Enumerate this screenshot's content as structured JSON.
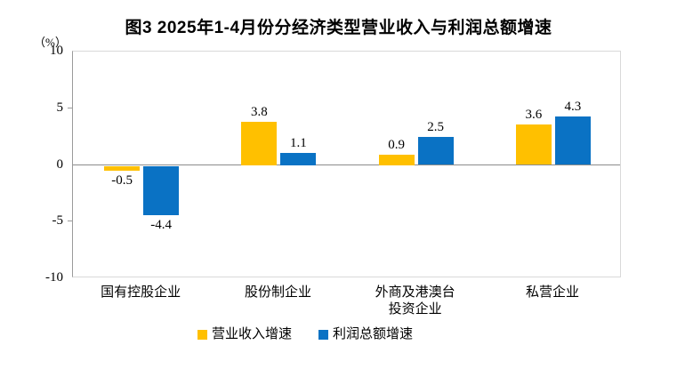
{
  "title": "图3 2025年1-4月份分经济类型营业收入与利润总额增速",
  "unit_label": "（%）",
  "chart_data": {
    "type": "bar",
    "title": "图3 2025年1-4月份分经济类型营业收入与利润总额增速",
    "categories": [
      "国有控股企业",
      "股份制企业",
      "外商及港澳台\n投资企业",
      "私营企业"
    ],
    "series": [
      {
        "name": "营业收入增速",
        "color": "#FFC000",
        "values": [
          -0.5,
          3.8,
          0.9,
          3.6
        ]
      },
      {
        "name": "利润总额增速",
        "color": "#0A72C4",
        "values": [
          -4.4,
          1.1,
          2.5,
          4.3
        ]
      }
    ],
    "ylabel": "（%）",
    "ylim": [
      -10,
      10
    ],
    "yticks": [
      10,
      5,
      0,
      -5,
      -10
    ],
    "grid": false,
    "legend_position": "bottom",
    "data_labels": true
  },
  "colors": {
    "background": "#ffffff",
    "plot_border": "#d9d9d9",
    "axis_line": "#9a9a9a",
    "zero_line": "#8c8c8c",
    "text": "#000000"
  }
}
